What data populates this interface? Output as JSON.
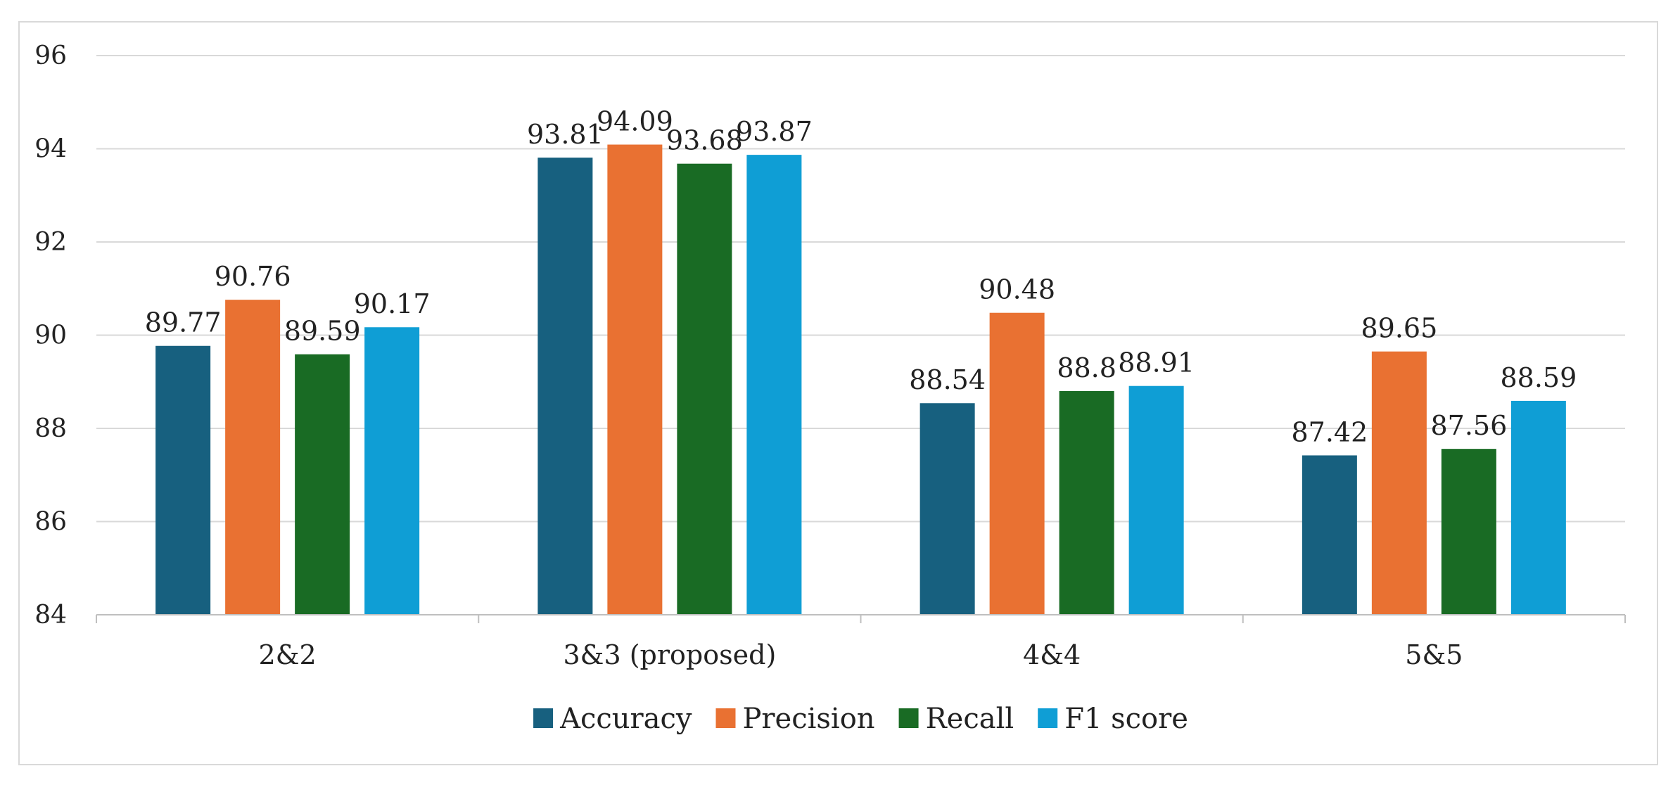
{
  "chart_data": {
    "type": "bar",
    "title": "",
    "xlabel": "",
    "ylabel": "",
    "ylim": [
      84,
      96
    ],
    "yticks": [
      84,
      86,
      88,
      90,
      92,
      94,
      96
    ],
    "grid": true,
    "legend_position": "bottom",
    "categories": [
      "2&2",
      "3&3 (proposed)",
      "4&4",
      "5&5"
    ],
    "series": [
      {
        "name": "Accuracy",
        "color": "#17607f",
        "values": [
          89.77,
          93.81,
          88.54,
          87.42
        ],
        "labels": [
          "89.77",
          "93.81",
          "88.54",
          "87.42"
        ]
      },
      {
        "name": "Precision",
        "color": "#e97132",
        "values": [
          90.76,
          94.09,
          90.48,
          89.65
        ],
        "labels": [
          "90.76",
          "94.09",
          "90.48",
          "89.65"
        ]
      },
      {
        "name": "Recall",
        "color": "#196b24",
        "values": [
          89.59,
          93.68,
          88.8,
          87.56
        ],
        "labels": [
          "89.59",
          "93.68",
          "88.8",
          "87.56"
        ]
      },
      {
        "name": "F1 score",
        "color": "#0f9ed5",
        "values": [
          90.17,
          93.87,
          88.91,
          88.59
        ],
        "labels": [
          "90.17",
          "93.87",
          "88.91",
          "88.59"
        ]
      }
    ]
  }
}
